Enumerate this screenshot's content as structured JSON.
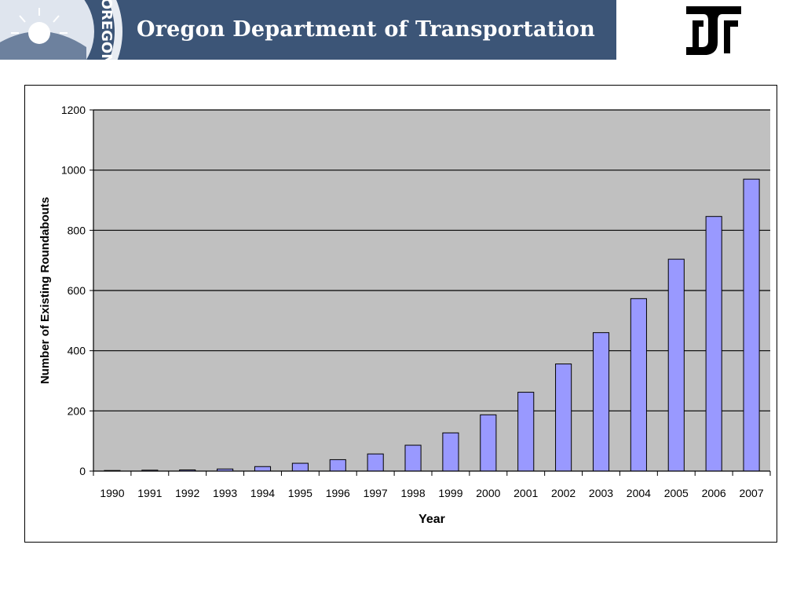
{
  "header": {
    "title": "Oregon Department of Transportation",
    "seal_text": "OREGON",
    "colors": {
      "banner": "#3c5577",
      "text": "#ffffff"
    },
    "logo_icon": "odot-logo-icon"
  },
  "chart_data": {
    "type": "bar",
    "title": "",
    "xlabel": "Year",
    "ylabel": "Number of Existing Roundabouts",
    "categories": [
      "1990",
      "1991",
      "1992",
      "1993",
      "1994",
      "1995",
      "1996",
      "1997",
      "1998",
      "1999",
      "2000",
      "2001",
      "2002",
      "2003",
      "2004",
      "2005",
      "2006",
      "2007"
    ],
    "values": [
      2,
      3,
      4,
      7,
      15,
      26,
      38,
      57,
      86,
      127,
      187,
      262,
      356,
      460,
      573,
      704,
      846,
      970
    ],
    "ylim": [
      0,
      1200
    ],
    "yticks": [
      0,
      200,
      400,
      600,
      800,
      1000,
      1200
    ],
    "grid": true,
    "colors": {
      "bar": "#9999ff",
      "plot_bg": "#c0c0c0",
      "gridline": "#000000"
    }
  }
}
